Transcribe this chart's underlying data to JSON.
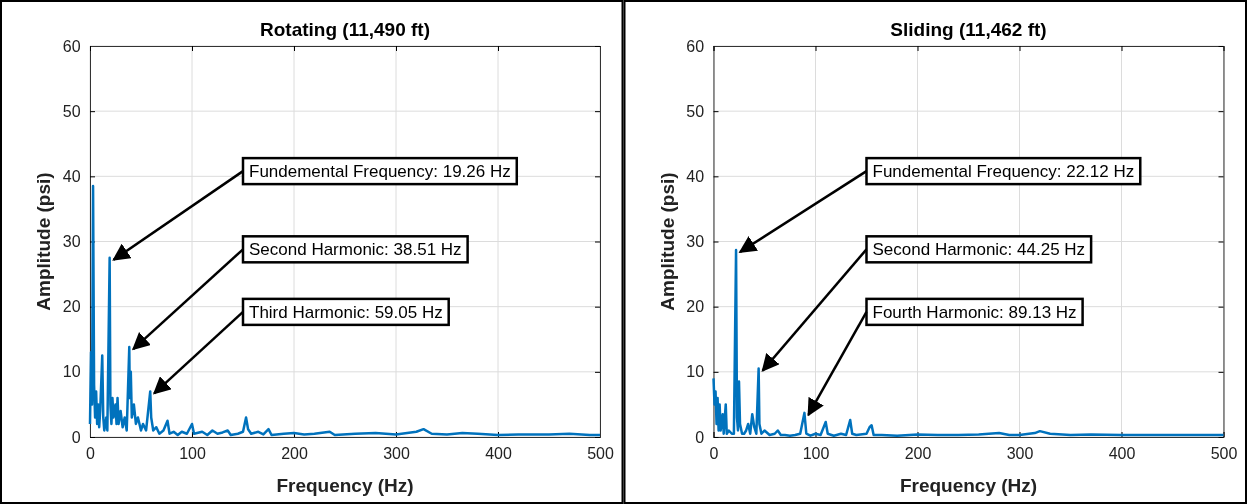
{
  "chart_data": [
    {
      "type": "line",
      "title": "Rotating (11,490 ft)",
      "xlabel": "Frequency (Hz)",
      "ylabel": "Amplitude (psi)",
      "xlim": [
        0,
        500
      ],
      "ylim": [
        0,
        60
      ],
      "xticks": [
        0,
        100,
        200,
        300,
        400,
        500
      ],
      "yticks": [
        0,
        10,
        20,
        30,
        40,
        50,
        60
      ],
      "grid": true,
      "series": [
        {
          "color": "#0072bd",
          "x": [
            0,
            1,
            2,
            3,
            4,
            5,
            6,
            7,
            8,
            9,
            10,
            12,
            13,
            14,
            16,
            17,
            19.26,
            20,
            21,
            22,
            23,
            25,
            26,
            27,
            28,
            30,
            32,
            34,
            36,
            38.51,
            39,
            40,
            41,
            43,
            45,
            47,
            50,
            52,
            55,
            59.05,
            60,
            62,
            65,
            68,
            72,
            76,
            78,
            82,
            86,
            90,
            95,
            100,
            102,
            110,
            115,
            120,
            125,
            130,
            135,
            138,
            145,
            150,
            153,
            155,
            158,
            165,
            170,
            175,
            178,
            190,
            200,
            210,
            220,
            235,
            240,
            260,
            280,
            300,
            320,
            327,
            335,
            350,
            365,
            380,
            400,
            420,
            450,
            470,
            490,
            500
          ],
          "values": [
            2,
            13,
            5,
            38.5,
            8,
            3,
            7,
            2,
            5,
            1.5,
            4,
            12.5,
            3,
            1,
            3,
            1,
            27.5,
            5,
            2,
            6,
            3,
            5,
            2,
            6,
            2,
            4,
            1.5,
            3,
            1,
            13.8,
            6,
            10,
            3,
            5,
            2,
            3,
            1,
            2,
            1,
            7,
            3,
            1,
            1.5,
            0.5,
            1,
            2.5,
            0.5,
            0.8,
            0.3,
            0.8,
            0.5,
            2,
            0.5,
            0.8,
            0.3,
            1,
            0.5,
            0.7,
            1,
            0.3,
            0.5,
            0.8,
            3,
            1.2,
            0.5,
            0.8,
            0.4,
            1.2,
            0.3,
            0.5,
            0.6,
            0.4,
            0.5,
            0.8,
            0.3,
            0.5,
            0.6,
            0.4,
            0.8,
            1.2,
            0.5,
            0.4,
            0.6,
            0.5,
            0.3,
            0.4,
            0.4,
            0.5,
            0.3,
            0.3
          ]
        }
      ],
      "annotations": [
        {
          "text": "Fundemental Frequency: 19.26 Hz",
          "x": 19.26,
          "y": 27.5
        },
        {
          "text": "Second Harmonic: 38.51 Hz",
          "x": 38.51,
          "y": 13.8
        },
        {
          "text": "Third Harmonic: 59.05 Hz",
          "x": 59.05,
          "y": 7
        }
      ]
    },
    {
      "type": "line",
      "title": "Sliding (11,462 ft)",
      "xlabel": "Frequency (Hz)",
      "ylabel": "Amplitude (psi)",
      "xlim": [
        0,
        500
      ],
      "ylim": [
        0,
        60
      ],
      "xticks": [
        0,
        100,
        200,
        300,
        400,
        500
      ],
      "yticks": [
        0,
        10,
        20,
        30,
        40,
        50,
        60
      ],
      "grid": true,
      "series": [
        {
          "color": "#0072bd",
          "x": [
            0,
            1,
            2,
            3,
            4,
            5,
            6,
            7,
            9,
            10,
            12,
            13,
            15,
            18,
            20,
            22.12,
            23,
            24,
            25,
            26,
            28,
            30,
            32,
            34,
            36,
            38,
            40,
            42,
            44.25,
            45,
            47,
            50,
            55,
            60,
            63,
            66,
            70,
            75,
            80,
            85,
            89.13,
            91,
            95,
            100,
            105,
            110,
            112,
            118,
            125,
            130,
            134,
            136,
            140,
            150,
            153,
            155,
            157,
            165,
            180,
            200,
            220,
            240,
            260,
            280,
            290,
            300,
            315,
            320,
            330,
            350,
            370,
            400,
            420,
            450,
            480,
            500
          ],
          "values": [
            9,
            5,
            7,
            2,
            6,
            1,
            5,
            1,
            3.5,
            0.5,
            5,
            0.5,
            1,
            0.5,
            0.5,
            28.7,
            3,
            1,
            8.5,
            2,
            0.5,
            0.5,
            1,
            2,
            0.5,
            3.5,
            1.5,
            0.5,
            10.5,
            2,
            0.5,
            1,
            0.3,
            0.5,
            1,
            0.3,
            0.3,
            0.2,
            0.3,
            0.5,
            3.7,
            0.5,
            0.2,
            0.5,
            0.3,
            2.3,
            0.5,
            0.2,
            0.5,
            0.3,
            2.6,
            0.5,
            0.3,
            0.5,
            1.5,
            1.8,
            0.3,
            0.3,
            0.2,
            0.4,
            0.3,
            0.3,
            0.4,
            0.6,
            0.3,
            0.3,
            0.6,
            0.9,
            0.5,
            0.3,
            0.4,
            0.3,
            0.3,
            0.3,
            0.3,
            0.3
          ]
        }
      ],
      "annotations": [
        {
          "text": "Fundemental Frequency: 22.12 Hz",
          "x": 22.12,
          "y": 28.7
        },
        {
          "text": "Second Harmonic: 44.25 Hz",
          "x": 44.25,
          "y": 10.5
        },
        {
          "text": "Fourth Harmonic: 89.13 Hz",
          "x": 89.13,
          "y": 3.7
        }
      ]
    }
  ]
}
